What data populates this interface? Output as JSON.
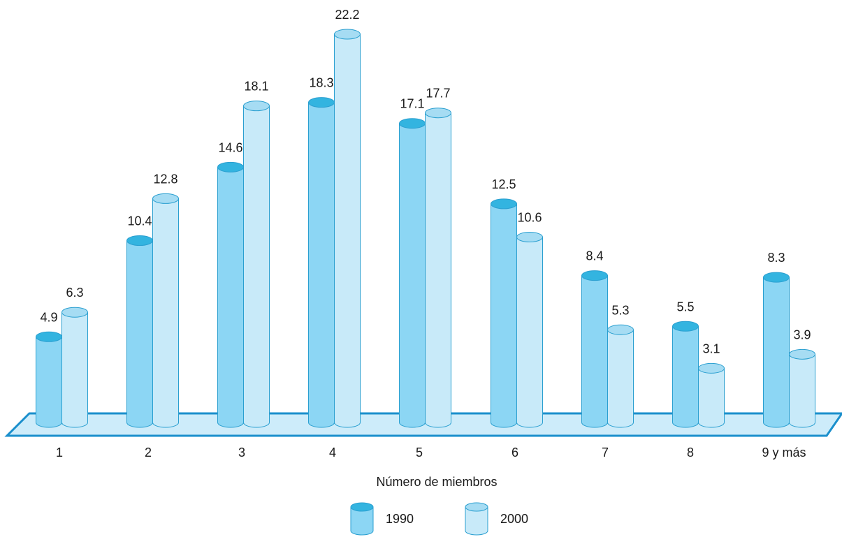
{
  "chart_data": {
    "type": "bar",
    "style": "3d-cylinder",
    "categories": [
      "1",
      "2",
      "3",
      "4",
      "5",
      "6",
      "7",
      "8",
      "9 y más"
    ],
    "series": [
      {
        "name": "1990",
        "values": [
          4.9,
          10.4,
          14.6,
          18.3,
          17.1,
          12.5,
          8.4,
          5.5,
          8.3
        ]
      },
      {
        "name": "2000",
        "values": [
          6.3,
          12.8,
          18.1,
          22.2,
          17.7,
          10.6,
          5.3,
          3.1,
          3.9
        ]
      }
    ],
    "value_labels_1990": [
      "4.9",
      "10.4",
      "14.6",
      "18.3",
      "17.1",
      "12.5",
      "8.4",
      "5.5",
      "8.3"
    ],
    "value_labels_2000": [
      "6.3",
      "12.8",
      "18.1",
      "22.2",
      "17.7",
      "10.6",
      "5.3",
      "3.1",
      "3.9"
    ],
    "xlabel": "Número de miembros",
    "ylabel": "",
    "ylim": [
      0,
      22.2
    ],
    "grid": false,
    "legend_position": "bottom-center"
  },
  "colors": {
    "series_1990_body": "#8cd6f4",
    "series_1990_top": "#33b4e0",
    "series_2000_body": "#c8eaf9",
    "series_2000_top": "#a6dcf3",
    "outline": "#2a9fd0",
    "floor_fill": "#cdecfa",
    "floor_stroke": "#1a8fcc"
  }
}
